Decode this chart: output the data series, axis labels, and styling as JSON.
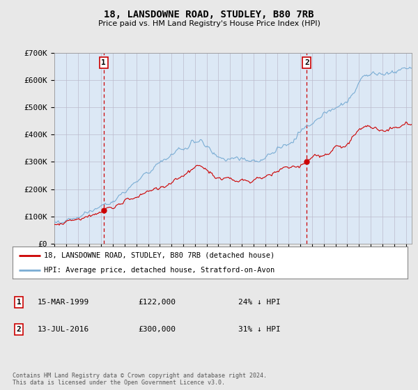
{
  "title": "18, LANSDOWNE ROAD, STUDLEY, B80 7RB",
  "subtitle": "Price paid vs. HM Land Registry's House Price Index (HPI)",
  "ylabel_ticks": [
    "£0",
    "£100K",
    "£200K",
    "£300K",
    "£400K",
    "£500K",
    "£600K",
    "£700K"
  ],
  "ylim": [
    0,
    700000
  ],
  "xlim_start": 1995.0,
  "xlim_end": 2025.5,
  "transaction1": {
    "date_x": 1999.21,
    "price": 122000,
    "label": "1"
  },
  "transaction2": {
    "date_x": 2016.54,
    "price": 300000,
    "label": "2"
  },
  "line_property_color": "#cc0000",
  "line_hpi_color": "#7aadd4",
  "vline_color": "#cc0000",
  "legend_property_label": "18, LANSDOWNE ROAD, STUDLEY, B80 7RB (detached house)",
  "legend_hpi_label": "HPI: Average price, detached house, Stratford-on-Avon",
  "table_rows": [
    {
      "num": "1",
      "date": "15-MAR-1999",
      "price": "£122,000",
      "hpi": "24% ↓ HPI"
    },
    {
      "num": "2",
      "date": "13-JUL-2016",
      "price": "£300,000",
      "hpi": "31% ↓ HPI"
    }
  ],
  "footnote": "Contains HM Land Registry data © Crown copyright and database right 2024.\nThis data is licensed under the Open Government Licence v3.0.",
  "grid_color": "#bbbbcc",
  "bg_color": "#e8e8e8",
  "plot_bg_color": "#dce8f5"
}
